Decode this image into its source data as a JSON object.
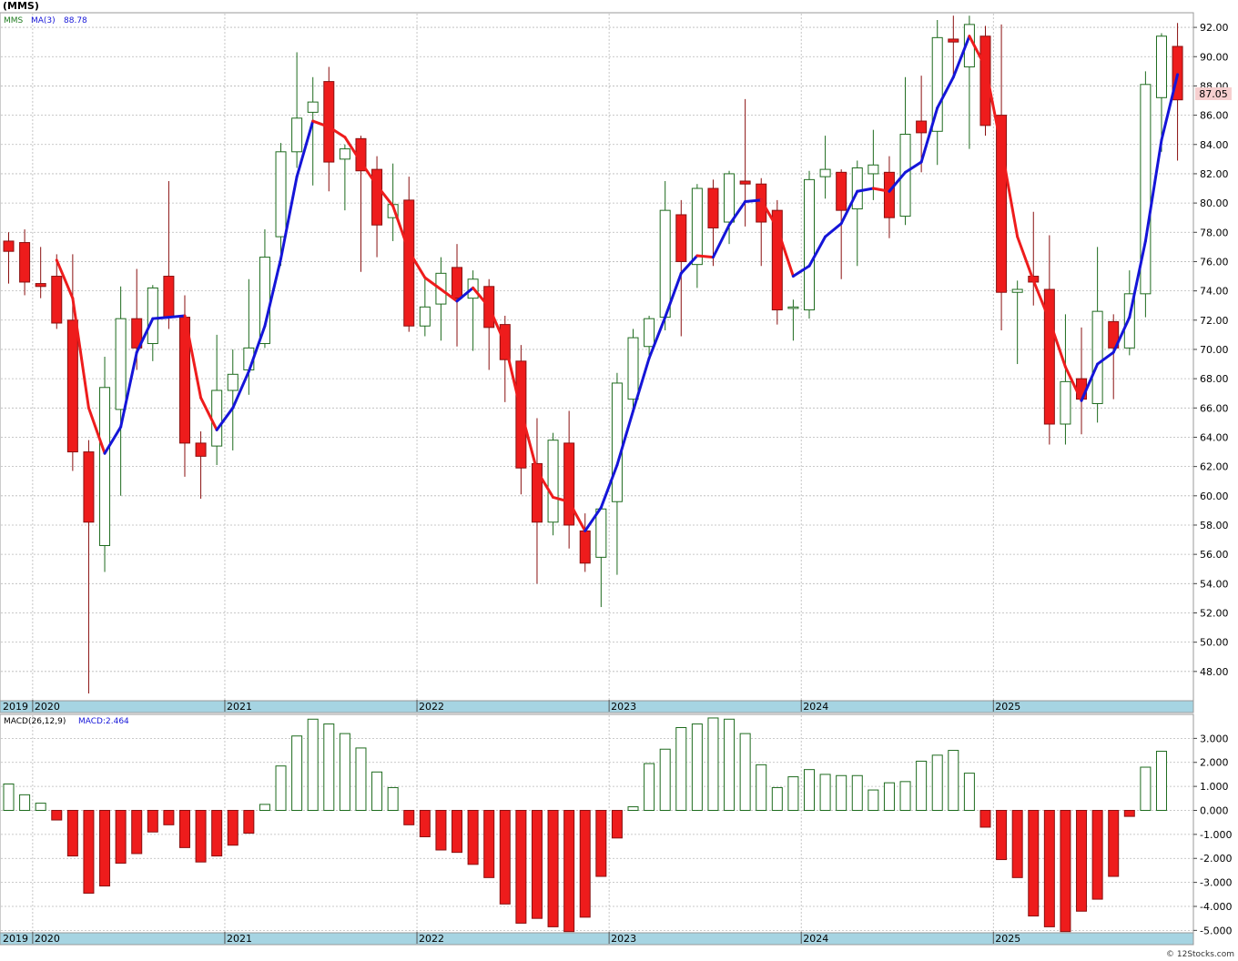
{
  "header": {
    "symbol_title": "(MMS)",
    "legend_symbol": "MMS",
    "ma_label": "MA(3)",
    "ma_value": "88.78",
    "last_price": "87.05"
  },
  "macd_header": {
    "label": "MACD(26,12,9)",
    "value_label": "MACD:2.464"
  },
  "footer": {
    "credit": "© 12Stocks.com"
  },
  "colors": {
    "up": "#1e6b1e",
    "down": "#ee1c1c",
    "ma_rising": "#1515d8",
    "ma_falling": "#ee1c1c",
    "axis_band": "#a6d4e2",
    "price_tag_bg": "#f6cfcf"
  },
  "chart_data": [
    {
      "type": "candlestick",
      "period": "monthly",
      "ylim": [
        46.0,
        93.0
      ],
      "yticks": [
        48,
        50,
        52,
        54,
        56,
        58,
        60,
        62,
        64,
        66,
        68,
        70,
        72,
        74,
        76,
        78,
        80,
        82,
        84,
        86,
        88,
        90,
        92
      ],
      "x_year_labels": [
        "2019",
        "2020",
        "2021",
        "2022",
        "2023",
        "2024",
        "2025"
      ],
      "grid": true,
      "series": [
        {
          "name": "MMS",
          "candles": [
            {
              "t": "2019-11",
              "o": 77.4,
              "h": 78.0,
              "l": 74.5,
              "c": 76.7
            },
            {
              "t": "2019-12",
              "o": 77.3,
              "h": 78.2,
              "l": 73.7,
              "c": 74.6
            },
            {
              "t": "2020-01",
              "o": 74.5,
              "h": 77.0,
              "l": 73.5,
              "c": 74.3
            },
            {
              "t": "2020-02",
              "o": 75.0,
              "h": 76.5,
              "l": 71.4,
              "c": 71.8
            },
            {
              "t": "2020-03",
              "o": 72.0,
              "h": 76.5,
              "l": 61.7,
              "c": 63.0
            },
            {
              "t": "2020-04",
              "o": 63.0,
              "h": 63.8,
              "l": 46.5,
              "c": 58.2
            },
            {
              "t": "2020-05",
              "o": 56.6,
              "h": 69.5,
              "l": 54.8,
              "c": 67.4
            },
            {
              "t": "2020-06",
              "o": 65.9,
              "h": 74.3,
              "l": 60.0,
              "c": 72.1
            },
            {
              "t": "2020-07",
              "o": 72.1,
              "h": 75.5,
              "l": 68.6,
              "c": 70.1
            },
            {
              "t": "2020-08",
              "o": 70.4,
              "h": 74.4,
              "l": 69.2,
              "c": 74.2
            },
            {
              "t": "2020-09",
              "o": 75.0,
              "h": 81.5,
              "l": 71.4,
              "c": 72.2
            },
            {
              "t": "2020-10",
              "o": 72.2,
              "h": 73.7,
              "l": 61.3,
              "c": 63.6
            },
            {
              "t": "2020-11",
              "o": 63.6,
              "h": 64.4,
              "l": 59.8,
              "c": 62.7
            },
            {
              "t": "2020-12",
              "o": 63.4,
              "h": 71.0,
              "l": 62.1,
              "c": 67.2
            },
            {
              "t": "2021-01",
              "o": 67.2,
              "h": 70.0,
              "l": 63.1,
              "c": 68.3
            },
            {
              "t": "2021-02",
              "o": 68.6,
              "h": 74.8,
              "l": 66.9,
              "c": 70.1
            },
            {
              "t": "2021-03",
              "o": 70.4,
              "h": 78.2,
              "l": 70.1,
              "c": 76.3
            },
            {
              "t": "2021-04",
              "o": 77.7,
              "h": 84.1,
              "l": 75.7,
              "c": 83.5
            },
            {
              "t": "2021-05",
              "o": 83.5,
              "h": 90.3,
              "l": 82.4,
              "c": 85.8
            },
            {
              "t": "2021-06",
              "o": 86.2,
              "h": 88.6,
              "l": 81.2,
              "c": 86.9
            },
            {
              "t": "2021-07",
              "o": 88.3,
              "h": 89.3,
              "l": 80.8,
              "c": 82.8
            },
            {
              "t": "2021-08",
              "o": 83.0,
              "h": 84.0,
              "l": 79.5,
              "c": 83.7
            },
            {
              "t": "2021-09",
              "o": 84.4,
              "h": 84.6,
              "l": 75.3,
              "c": 82.2
            },
            {
              "t": "2021-10",
              "o": 82.3,
              "h": 83.2,
              "l": 76.3,
              "c": 78.5
            },
            {
              "t": "2021-11",
              "o": 79.0,
              "h": 82.7,
              "l": 77.4,
              "c": 79.9
            },
            {
              "t": "2021-12",
              "o": 80.2,
              "h": 81.8,
              "l": 71.2,
              "c": 71.6
            },
            {
              "t": "2022-01",
              "o": 71.6,
              "h": 74.8,
              "l": 70.9,
              "c": 72.9
            },
            {
              "t": "2022-02",
              "o": 73.1,
              "h": 76.3,
              "l": 70.6,
              "c": 75.2
            },
            {
              "t": "2022-03",
              "o": 75.6,
              "h": 77.2,
              "l": 70.2,
              "c": 73.5
            },
            {
              "t": "2022-04",
              "o": 73.5,
              "h": 75.4,
              "l": 69.9,
              "c": 74.8
            },
            {
              "t": "2022-05",
              "o": 74.3,
              "h": 74.8,
              "l": 68.6,
              "c": 71.5
            },
            {
              "t": "2022-06",
              "o": 71.7,
              "h": 72.3,
              "l": 66.4,
              "c": 69.3
            },
            {
              "t": "2022-07",
              "o": 69.2,
              "h": 70.3,
              "l": 60.1,
              "c": 61.9
            },
            {
              "t": "2022-08",
              "o": 62.2,
              "h": 65.3,
              "l": 54.0,
              "c": 58.2
            },
            {
              "t": "2022-09",
              "o": 58.2,
              "h": 64.3,
              "l": 57.3,
              "c": 63.8
            },
            {
              "t": "2022-10",
              "o": 63.6,
              "h": 65.8,
              "l": 56.4,
              "c": 58.0
            },
            {
              "t": "2022-11",
              "o": 57.6,
              "h": 58.8,
              "l": 54.8,
              "c": 55.4
            },
            {
              "t": "2022-12",
              "o": 55.8,
              "h": 59.1,
              "l": 52.4,
              "c": 59.1
            },
            {
              "t": "2023-01",
              "o": 59.6,
              "h": 68.4,
              "l": 54.6,
              "c": 67.7
            },
            {
              "t": "2023-02",
              "o": 66.6,
              "h": 71.4,
              "l": 66.0,
              "c": 70.8
            },
            {
              "t": "2023-03",
              "o": 70.2,
              "h": 72.3,
              "l": 69.6,
              "c": 72.1
            },
            {
              "t": "2023-04",
              "o": 72.2,
              "h": 81.5,
              "l": 71.3,
              "c": 79.5
            },
            {
              "t": "2023-05",
              "o": 79.2,
              "h": 80.2,
              "l": 70.9,
              "c": 76.0
            },
            {
              "t": "2023-06",
              "o": 75.8,
              "h": 81.3,
              "l": 74.2,
              "c": 81.0
            },
            {
              "t": "2023-07",
              "o": 81.0,
              "h": 81.6,
              "l": 75.7,
              "c": 78.3
            },
            {
              "t": "2023-08",
              "o": 78.7,
              "h": 82.2,
              "l": 77.2,
              "c": 82.0
            },
            {
              "t": "2023-09",
              "o": 81.5,
              "h": 87.1,
              "l": 78.4,
              "c": 81.3
            },
            {
              "t": "2023-10",
              "o": 81.3,
              "h": 81.7,
              "l": 75.7,
              "c": 78.7
            },
            {
              "t": "2023-11",
              "o": 79.5,
              "h": 80.2,
              "l": 71.7,
              "c": 72.7
            },
            {
              "t": "2023-12",
              "o": 72.8,
              "h": 73.4,
              "l": 70.6,
              "c": 72.9
            },
            {
              "t": "2024-01",
              "o": 72.7,
              "h": 82.2,
              "l": 72.1,
              "c": 81.6
            },
            {
              "t": "2024-02",
              "o": 81.8,
              "h": 84.6,
              "l": 80.3,
              "c": 82.3
            },
            {
              "t": "2024-03",
              "o": 82.1,
              "h": 82.3,
              "l": 74.8,
              "c": 79.5
            },
            {
              "t": "2024-04",
              "o": 79.6,
              "h": 82.9,
              "l": 75.7,
              "c": 82.4
            },
            {
              "t": "2024-05",
              "o": 82.0,
              "h": 85.0,
              "l": 80.2,
              "c": 82.6
            },
            {
              "t": "2024-06",
              "o": 82.1,
              "h": 83.2,
              "l": 77.6,
              "c": 79.0
            },
            {
              "t": "2024-07",
              "o": 79.1,
              "h": 88.6,
              "l": 78.5,
              "c": 84.7
            },
            {
              "t": "2024-08",
              "o": 85.6,
              "h": 88.7,
              "l": 82.1,
              "c": 84.8
            },
            {
              "t": "2024-09",
              "o": 84.9,
              "h": 92.5,
              "l": 82.6,
              "c": 91.3
            },
            {
              "t": "2024-10",
              "o": 91.2,
              "h": 92.8,
              "l": 88.6,
              "c": 91.0
            },
            {
              "t": "2024-11",
              "o": 89.3,
              "h": 92.8,
              "l": 83.7,
              "c": 92.2
            },
            {
              "t": "2024-12",
              "o": 91.4,
              "h": 92.1,
              "l": 84.6,
              "c": 85.3
            },
            {
              "t": "2025-01",
              "o": 86.0,
              "h": 92.2,
              "l": 71.3,
              "c": 73.9
            },
            {
              "t": "2025-02",
              "o": 73.9,
              "h": 74.7,
              "l": 69.0,
              "c": 74.1
            },
            {
              "t": "2025-03",
              "o": 75.0,
              "h": 79.4,
              "l": 73.0,
              "c": 74.6
            },
            {
              "t": "2025-04",
              "o": 74.1,
              "h": 77.8,
              "l": 63.5,
              "c": 64.9
            },
            {
              "t": "2025-05",
              "o": 64.9,
              "h": 72.4,
              "l": 63.5,
              "c": 67.8
            },
            {
              "t": "2025-06",
              "o": 68.0,
              "h": 71.5,
              "l": 64.2,
              "c": 66.6
            },
            {
              "t": "2025-07",
              "o": 66.3,
              "h": 77.0,
              "l": 65.0,
              "c": 72.6
            },
            {
              "t": "2025-08",
              "o": 71.9,
              "h": 72.4,
              "l": 66.6,
              "c": 70.1
            },
            {
              "t": "2025-09",
              "o": 70.1,
              "h": 75.4,
              "l": 69.6,
              "c": 73.8
            },
            {
              "t": "2025-10",
              "o": 73.8,
              "h": 89.0,
              "l": 72.2,
              "c": 88.1
            },
            {
              "t": "2025-11",
              "o": 87.2,
              "h": 91.6,
              "l": 83.5,
              "c": 91.4
            },
            {
              "t": "2025-12",
              "o": 90.7,
              "h": 92.3,
              "l": 82.9,
              "c": 87.05
            }
          ]
        },
        {
          "name": "MA(3)",
          "values": [
            null,
            null,
            null,
            76.1,
            73.5,
            66.0,
            62.9,
            64.7,
            69.8,
            72.1,
            72.2,
            72.3,
            66.7,
            64.5,
            66.0,
            68.5,
            71.6,
            76.2,
            81.8,
            85.6,
            85.2,
            84.5,
            82.8,
            81.2,
            79.8,
            76.7,
            74.9,
            74.1,
            73.3,
            74.2,
            72.9,
            70.4,
            65.8,
            61.7,
            59.9,
            59.6,
            57.6,
            59.2,
            62.1,
            65.8,
            69.4,
            72.2,
            75.2,
            76.4,
            76.3,
            78.5,
            80.1,
            80.2,
            78.3,
            75.0,
            75.7,
            77.7,
            78.6,
            80.8,
            81.0,
            80.8,
            82.1,
            82.8,
            86.5,
            88.6,
            91.4,
            89.3,
            83.8,
            77.7,
            74.7,
            72.0,
            68.8,
            66.5,
            69.0,
            69.8,
            72.2,
            77.4,
            84.3,
            88.78
          ]
        }
      ]
    },
    {
      "type": "bar",
      "title": "MACD(26,12,9)",
      "ylim": [
        -5.1,
        4.0
      ],
      "yticks": [
        -5,
        -4,
        -3,
        -2,
        -1,
        0,
        1,
        2,
        3
      ],
      "ytick_labels": [
        "-5.000",
        "-4.000",
        "-3.000",
        "-2.000",
        "-1.000",
        "0.000",
        "1.000",
        "2.000",
        "3.000"
      ],
      "x_year_labels": [
        "2019",
        "2020",
        "2021",
        "2022",
        "2023",
        "2024",
        "2025"
      ],
      "series": [
        {
          "name": "MACD",
          "values": [
            1.1,
            0.65,
            0.3,
            -0.4,
            -1.9,
            -3.45,
            -3.15,
            -2.2,
            -1.8,
            -0.9,
            -0.6,
            -1.55,
            -2.15,
            -1.9,
            -1.45,
            -0.95,
            0.25,
            1.85,
            3.1,
            3.8,
            3.6,
            3.2,
            2.6,
            1.6,
            0.95,
            -0.6,
            -1.1,
            -1.65,
            -1.75,
            -2.25,
            -2.8,
            -3.9,
            -4.7,
            -4.5,
            -4.85,
            -5.05,
            -4.45,
            -2.75,
            -1.15,
            0.15,
            1.95,
            2.55,
            3.45,
            3.6,
            3.85,
            3.8,
            3.2,
            1.9,
            0.95,
            1.4,
            1.7,
            1.5,
            1.45,
            1.45,
            0.85,
            1.15,
            1.2,
            2.05,
            2.3,
            2.5,
            1.55,
            -0.7,
            -2.05,
            -2.8,
            -4.4,
            -4.85,
            -5.05,
            -4.2,
            -3.7,
            -2.75,
            -0.25,
            1.8,
            2.464
          ]
        }
      ]
    }
  ]
}
